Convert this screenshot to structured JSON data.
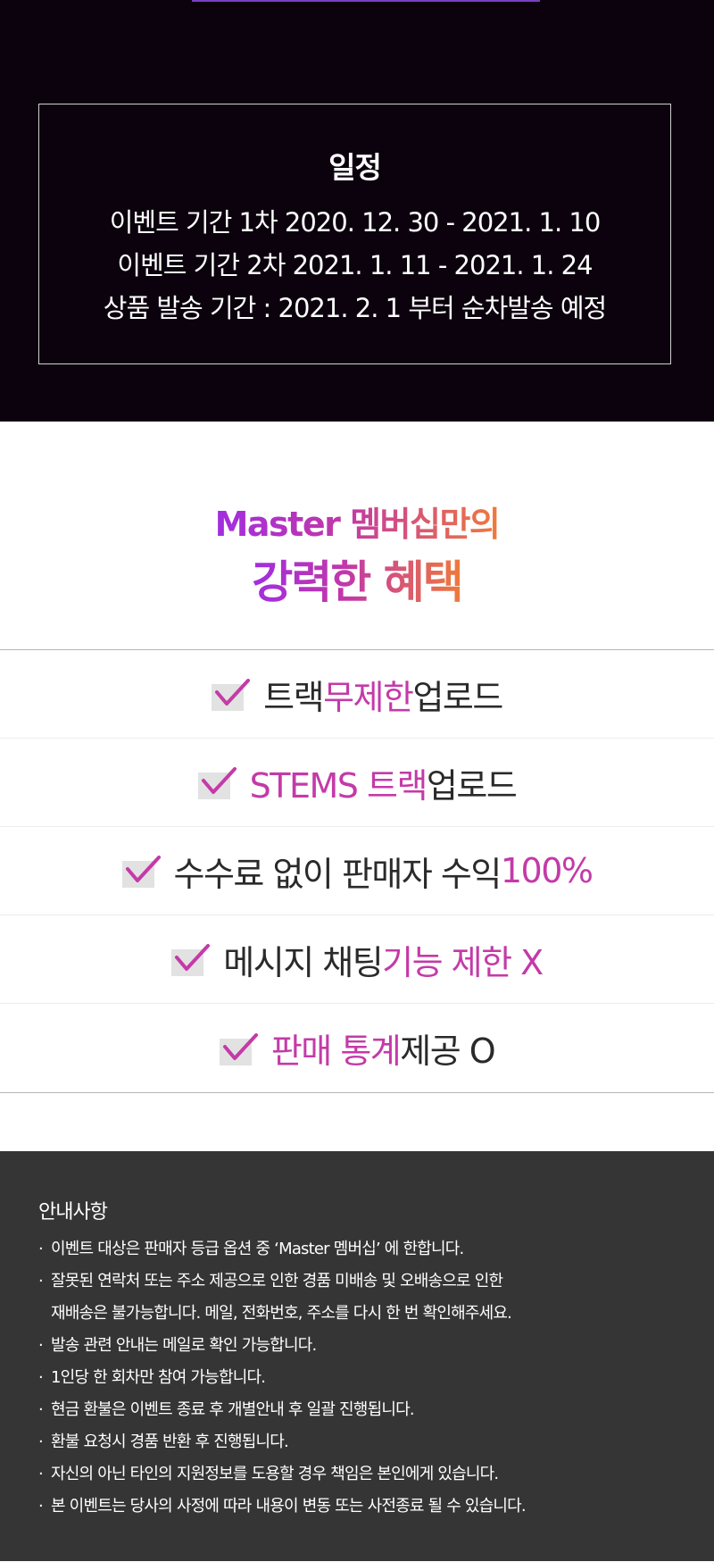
{
  "schedule": {
    "title": "일정",
    "lines": [
      "이벤트 기간 1차 2020. 12. 30 - 2021. 1. 10",
      "이벤트 기간 2차 2021. 1. 11 - 2021. 1. 24",
      "상품 발송 기간 : 2021. 2. 1 부터 순차발송 예정"
    ]
  },
  "benefit_heading": {
    "line1": "Master 멤버십만의",
    "line2": "강력한 혜택"
  },
  "benefits": [
    {
      "a": "트랙 ",
      "b": "무제한",
      "c": " 업로드"
    },
    {
      "a": "",
      "b": "STEMS 트랙",
      "c": " 업로드"
    },
    {
      "a": "수수료 없이 판매자 수익 ",
      "b": "100%",
      "c": ""
    },
    {
      "a": "메시지 채팅 ",
      "b": "기능 제한 X",
      "c": ""
    },
    {
      "a": "",
      "b": "판매 통계",
      "c": " 제공 O"
    }
  ],
  "notice": {
    "title": "안내사항",
    "items": [
      "이벤트 대상은 판매자 등급 옵션 중 ‘Master 멤버십’ 에 한합니다.",
      "잘못된 연락처 또는 주소 제공으로 인한 경품 미배송 및 오배송으로 인한",
      "재배송은 불가능합니다. 메일, 전화번호, 주소를 다시 한 번 확인해주세요.",
      "발송 관련 안내는 메일로 확인 가능합니다.",
      "1인당 한 회차만 참여 가능합니다.",
      "현금 환불은 이벤트 종료 후 개별안내 후 일괄 진행됩니다.",
      "환불 요청시 경품 반환 후 진행됩니다.",
      "자신의 아닌 타인의 지원정보를 도용할 경우 책임은 본인에게 있습니다.",
      "본 이벤트는 당사의 사정에 따라 내용이 변동 또는 사전종료 될 수 있습니다."
    ]
  },
  "colors": {
    "dark_bg": "#0b020d",
    "accent_pink": "#c43aa8",
    "notice_bg": "#353535"
  },
  "icons": {
    "check": "checkbox-check-icon"
  }
}
